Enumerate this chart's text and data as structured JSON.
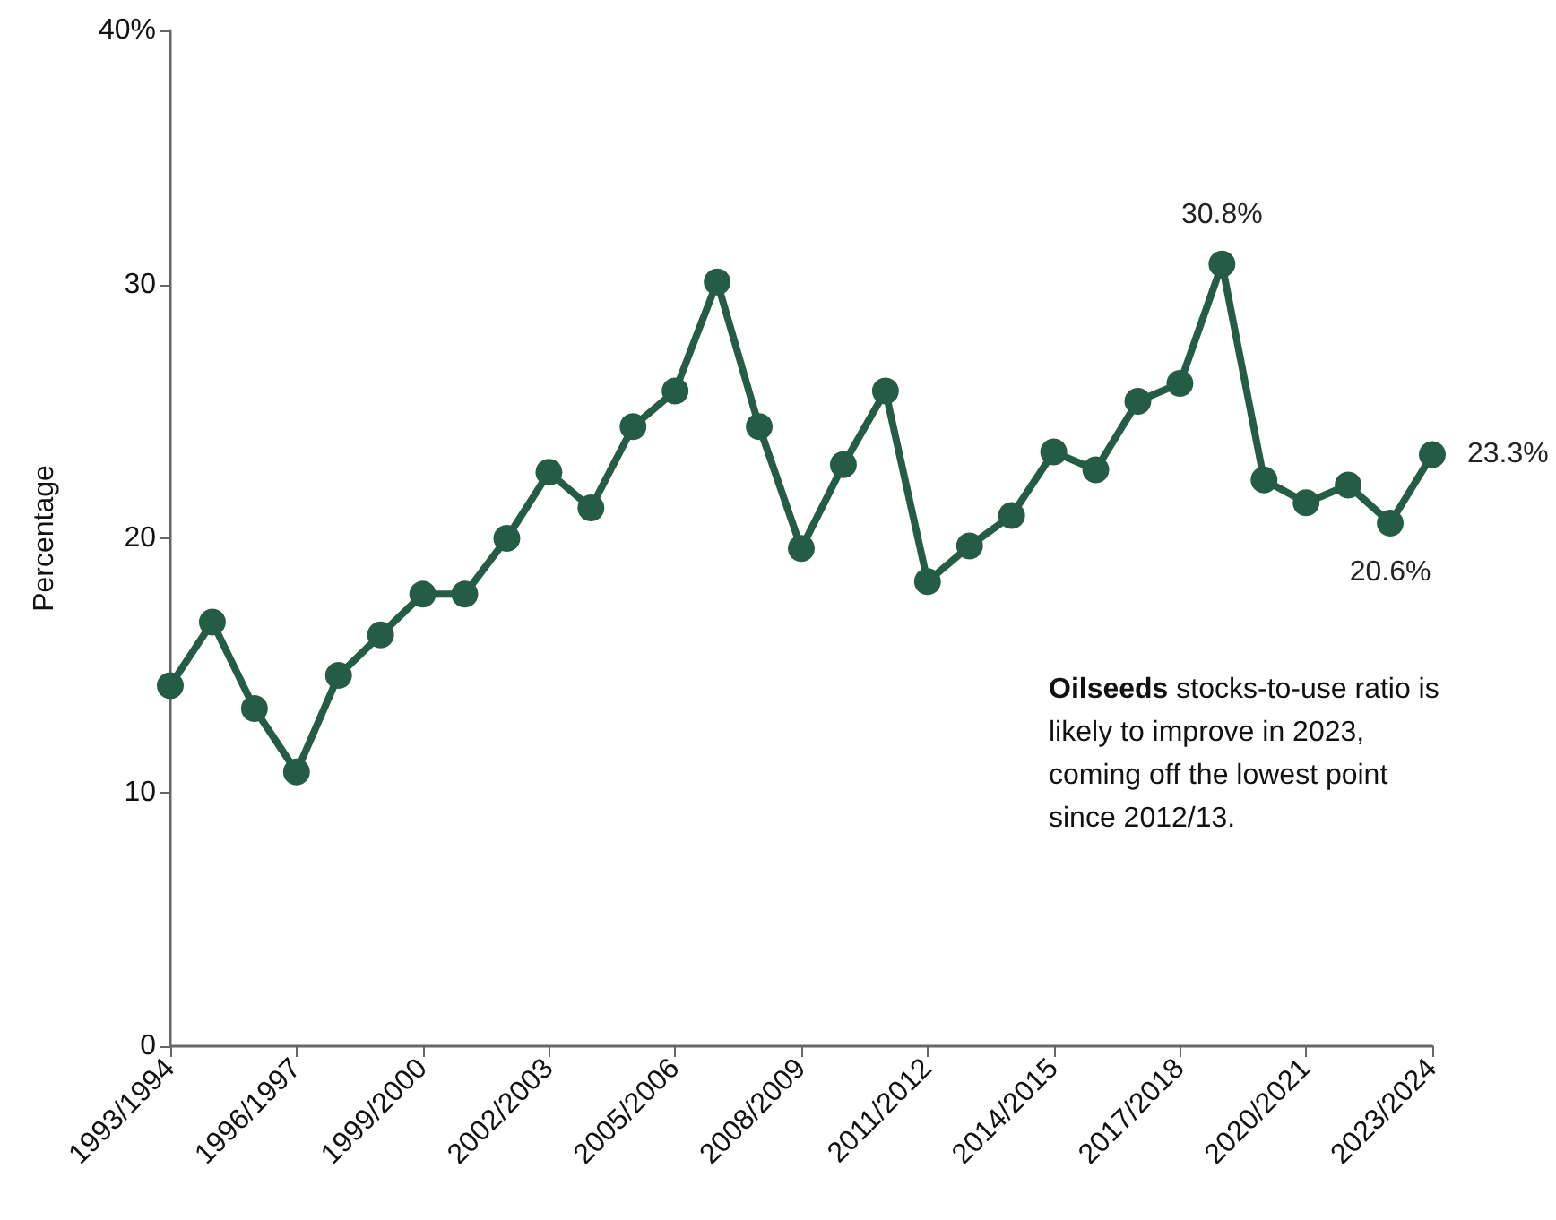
{
  "chart_data": {
    "type": "line",
    "ylabel": "Percentage",
    "categories": [
      "1993/1994",
      null,
      null,
      "1996/1997",
      null,
      null,
      "1999/2000",
      null,
      null,
      "2002/2003",
      null,
      null,
      "2005/2006",
      null,
      null,
      "2008/2009",
      null,
      null,
      "2011/2012",
      null,
      null,
      "2014/2015",
      null,
      null,
      "2017/2018",
      null,
      null,
      "2020/2021",
      null,
      null,
      "2023/2024"
    ],
    "series": [
      {
        "color": "#245c45",
        "values": [
          14.2,
          16.7,
          13.3,
          10.8,
          14.6,
          16.2,
          17.8,
          17.8,
          20.0,
          22.6,
          21.2,
          24.4,
          25.8,
          30.1,
          24.4,
          19.6,
          22.9,
          25.8,
          18.3,
          19.7,
          20.9,
          23.4,
          22.7,
          25.4,
          26.1,
          30.8,
          22.3,
          21.4,
          22.1,
          20.6,
          23.3
        ],
        "value_labels": [
          null,
          null,
          null,
          null,
          null,
          null,
          null,
          null,
          null,
          null,
          null,
          null,
          null,
          null,
          null,
          null,
          null,
          null,
          null,
          null,
          null,
          null,
          null,
          null,
          null,
          "30.8%",
          null,
          null,
          null,
          "20.6%",
          "23.3%"
        ]
      }
    ],
    "ylim": [
      0,
      40
    ],
    "yticks": [
      0,
      10,
      20,
      30,
      {
        "value": 40,
        "label": "40%"
      }
    ],
    "grid": false,
    "marker": "circle",
    "line_style": "solid",
    "annotations": [
      "Oilseeds stocks-to-use ratio is likely to improve in 2023, coming off the lowest point since 2012/13."
    ]
  }
}
